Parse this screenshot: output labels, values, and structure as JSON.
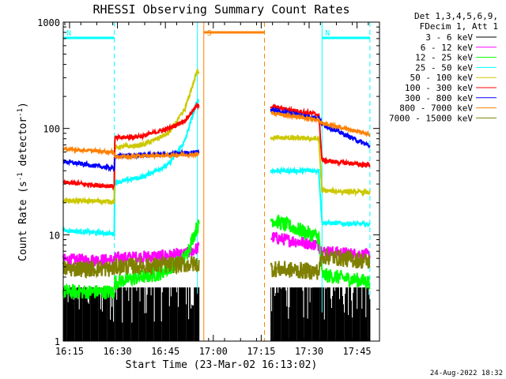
{
  "chart_data": {
    "type": "line",
    "title": "RHESSI Observing Summary Count Rates",
    "xlabel": "Start Time (23-Mar-02 16:13:02)",
    "ylabel_main": "Count Rate (s",
    "ylabel_sup1": "-1",
    "ylabel_mid": " detector",
    "ylabel_sup2": "-1",
    "ylabel_end": ")",
    "x_range_minutes": [
      0,
      99
    ],
    "y_range": [
      1,
      1000
    ],
    "y_scale": "log",
    "x_tick_labels": [
      "16:15",
      "16:30",
      "16:45",
      "17:00",
      "17:15",
      "17:30",
      "17:45"
    ],
    "x_tick_minutes": [
      1.97,
      16.97,
      31.97,
      46.97,
      61.97,
      76.97,
      91.97
    ],
    "y_tick_labels": [
      "1",
      "10",
      "100",
      "1000"
    ],
    "y_tick_values": [
      1,
      10,
      100,
      1000
    ],
    "legend_header": [
      "Det 1,3,4,5,6,9,",
      "FDecim 1, Att 1"
    ],
    "legend_entries": [
      {
        "label": "3 - 6 keV",
        "color": "#000000"
      },
      {
        "label": "6 - 12 keV",
        "color": "#ff00ff"
      },
      {
        "label": "12 - 25 keV",
        "color": "#00ff00"
      },
      {
        "label": "25 - 50 keV",
        "color": "#00ffff"
      },
      {
        "label": "50 - 100 keV",
        "color": "#ccc800"
      },
      {
        "label": "100 - 300 keV",
        "color": "#ff0000"
      },
      {
        "label": "300 - 800 keV",
        "color": "#0000ff"
      },
      {
        "label": "800 - 7000 keV",
        "color": "#ff8000"
      },
      {
        "label": "7000 - 15000 keV",
        "color": "#808000"
      }
    ],
    "flags": [
      {
        "label": "N",
        "color": "#00ffff",
        "start": 0,
        "end": 16
      },
      {
        "label": "S",
        "color": "#ff8000",
        "start": 44,
        "end": 63
      },
      {
        "label": "N",
        "color": "#00ffff",
        "start": 81,
        "end": 96
      }
    ],
    "boundaries": [
      {
        "minute": 16,
        "color": "#00ffff",
        "style": "dashed"
      },
      {
        "minute": 42,
        "color": "#00ffff",
        "style": "solid"
      },
      {
        "minute": 44,
        "color": "#ff8000",
        "style": "solid"
      },
      {
        "minute": 63,
        "color": "#ff8000",
        "style": "dashed"
      },
      {
        "minute": 81,
        "color": "#00ffff",
        "style": "solid"
      },
      {
        "minute": 96,
        "color": "#00ffff",
        "style": "dashed"
      }
    ],
    "segments": [
      [
        0,
        42.5
      ],
      [
        65,
        96.5
      ]
    ],
    "series": [
      {
        "name": "3 - 6 keV",
        "color": "#000000",
        "points": [
          [
            0,
            1.5
          ],
          [
            16,
            1.5
          ],
          [
            16.1,
            1.4
          ],
          [
            42,
            1.6
          ],
          [
            65,
            1.5
          ],
          [
            96,
            1.5
          ]
        ],
        "noise": 0.55,
        "dense": true
      },
      {
        "name": "6 - 12 keV",
        "color": "#ff00ff",
        "points": [
          [
            0,
            5.8
          ],
          [
            16,
            5.8
          ],
          [
            16.1,
            6.0
          ],
          [
            38,
            6.5
          ],
          [
            42,
            7.5
          ],
          [
            65,
            9.5
          ],
          [
            80,
            8.0
          ],
          [
            81,
            7.0
          ],
          [
            96,
            6.4
          ]
        ],
        "noise": 0.06,
        "dense": false
      },
      {
        "name": "12 - 25 keV",
        "color": "#00ff00",
        "points": [
          [
            0,
            2.9
          ],
          [
            16,
            2.9
          ],
          [
            16.1,
            3.6
          ],
          [
            30,
            4.3
          ],
          [
            38,
            6.0
          ],
          [
            42,
            12
          ],
          [
            65,
            14
          ],
          [
            80,
            9.5
          ],
          [
            81,
            4.2
          ],
          [
            96,
            3.6
          ]
        ],
        "noise": 0.07,
        "dense": false
      },
      {
        "name": "25 - 50 keV",
        "color": "#00ffff",
        "points": [
          [
            0,
            11
          ],
          [
            16,
            10.2
          ],
          [
            16.1,
            31
          ],
          [
            25,
            35
          ],
          [
            33,
            46
          ],
          [
            38,
            75
          ],
          [
            42,
            185
          ],
          [
            65,
            40
          ],
          [
            80,
            40
          ],
          [
            81,
            13
          ],
          [
            96,
            12.5
          ]
        ],
        "noise": 0.02,
        "dense": false
      },
      {
        "name": "50 - 100 keV",
        "color": "#ccc800",
        "points": [
          [
            0,
            21
          ],
          [
            16,
            20.5
          ],
          [
            16.1,
            66
          ],
          [
            25,
            70
          ],
          [
            33,
            90
          ],
          [
            38,
            150
          ],
          [
            42,
            350
          ],
          [
            65,
            82
          ],
          [
            80,
            80
          ],
          [
            81,
            26
          ],
          [
            96,
            25
          ]
        ],
        "noise": 0.02,
        "dense": false
      },
      {
        "name": "100 - 300 keV",
        "color": "#ff0000",
        "points": [
          [
            0,
            31
          ],
          [
            16,
            28.5
          ],
          [
            16.1,
            81
          ],
          [
            25,
            85
          ],
          [
            33,
            100
          ],
          [
            38,
            118
          ],
          [
            42,
            165
          ],
          [
            65,
            160
          ],
          [
            80,
            135
          ],
          [
            81,
            50
          ],
          [
            96,
            45
          ]
        ],
        "noise": 0.02,
        "dense": false
      },
      {
        "name": "300 - 800 keV",
        "color": "#0000ff",
        "points": [
          [
            0,
            49
          ],
          [
            16,
            42
          ],
          [
            16.1,
            55
          ],
          [
            33,
            57
          ],
          [
            42,
            60
          ],
          [
            65,
            150
          ],
          [
            80,
            125
          ],
          [
            81,
            110
          ],
          [
            96,
            68
          ]
        ],
        "noise": 0.02,
        "dense": false
      },
      {
        "name": "800 - 7000 keV",
        "color": "#ff8000",
        "points": [
          [
            0,
            64
          ],
          [
            16,
            60
          ],
          [
            16.1,
            54
          ],
          [
            42,
            57
          ],
          [
            65,
            140
          ],
          [
            80,
            120
          ],
          [
            81,
            112
          ],
          [
            96,
            88
          ]
        ],
        "noise": 0.015,
        "dense": false
      },
      {
        "name": "7000 - 15000 keV",
        "color": "#808000",
        "points": [
          [
            0,
            4.8
          ],
          [
            16,
            4.8
          ],
          [
            16.1,
            5.0
          ],
          [
            42,
            5.3
          ],
          [
            65,
            4.8
          ],
          [
            80,
            4.5
          ],
          [
            81,
            6.3
          ],
          [
            96,
            5.6
          ]
        ],
        "noise": 0.08,
        "dense": false
      }
    ]
  },
  "footer": {
    "timestamp": "24-Aug-2022 18:32"
  }
}
